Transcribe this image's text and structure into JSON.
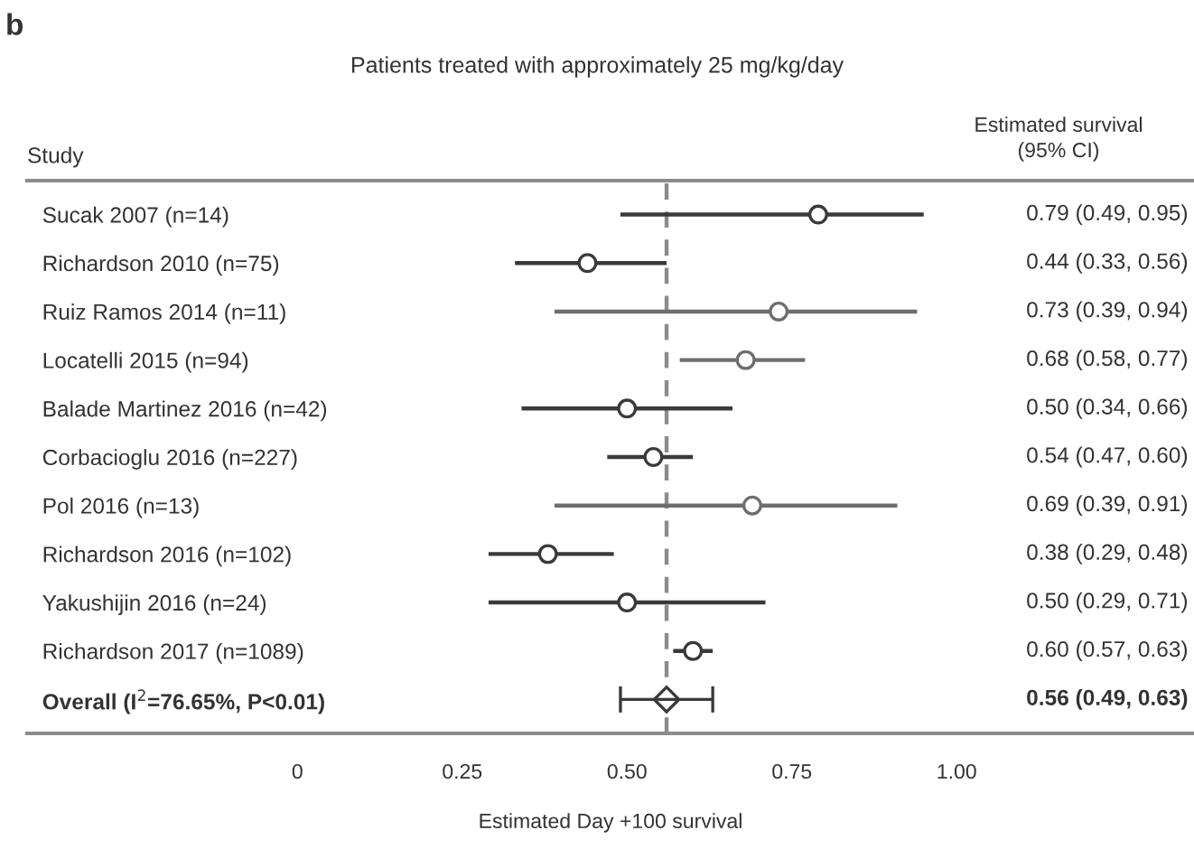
{
  "chart_data": {
    "type": "scatter",
    "orientation": "horizontal",
    "title": "Patients treated with approximately 25 mg/kg/day",
    "xlabel": "Estimated Day +100 survival",
    "annotations": [
      "b",
      "Study",
      "Estimated survival\n(95% CI)",
      "0.79 (0.49, 0.95)",
      "0.44 (0.33, 0.56)",
      "0.73 (0.39, 0.94)",
      "0.68 (0.58, 0.77)",
      "0.50 (0.34, 0.66)",
      "0.54 (0.47, 0.60)",
      "0.69 (0.39, 0.91)",
      "0.38 (0.29, 0.48)",
      "0.50 (0.29, 0.71)",
      "0.60 (0.57, 0.63)",
      "0.56 (0.49, 0.63)"
    ],
    "categories": [
      "Sucak 2007 (n=14)",
      "Richardson 2010 (n=75)",
      "Ruiz Ramos 2014 (n=11)",
      "Locatelli 2015 (n=94)",
      "Balade Martinez 2016 (n=42)",
      "Corbacioglu 2016 (n=227)",
      "Pol 2016 (n=13)",
      "Richardson 2016 (n=102)",
      "Yakushijin 2016 (n=24)",
      "Richardson 2017 (n=1089)",
      "Overall (I$^{2}$=76.65%, P<0.01)"
    ],
    "xlim": [
      -0.41,
      1.36
    ],
    "xticks": [
      0,
      {
        "value": 0.25,
        "label": "0.25"
      },
      {
        "value": 0.5,
        "label": "0.50"
      },
      {
        "value": 0.75,
        "label": "0.75"
      },
      {
        "value": 1,
        "label": "1.00"
      }
    ],
    "ref_lines": [
      {
        "axis": "x",
        "value": 0.56,
        "label": null,
        "color": "#8c8c8c",
        "line_style": "dashed"
      }
    ],
    "series": [
      {
        "marker": "circle",
        "color": "#3a3a3a",
        "colors": [
          "#3a3a3a",
          "#3a3a3a",
          "#6e6e6e",
          "#6e6e6e",
          "#3a3a3a",
          "#3a3a3a",
          "#6e6e6e",
          "#3a3a3a",
          "#3a3a3a",
          "#3a3a3a",
          null
        ],
        "values": [
          0.79,
          0.44,
          0.73,
          0.68,
          0.5,
          0.54,
          0.69,
          0.38,
          0.5,
          0.6,
          null
        ],
        "errors": [
          [
            0.49,
            0.95
          ],
          [
            0.33,
            0.56
          ],
          [
            0.39,
            0.94
          ],
          [
            0.58,
            0.77
          ],
          [
            0.34,
            0.66
          ],
          [
            0.47,
            0.6
          ],
          [
            0.39,
            0.91
          ],
          [
            0.29,
            0.48
          ],
          [
            0.29,
            0.71
          ],
          [
            0.57,
            0.63
          ],
          null
        ]
      },
      {
        "marker": "diamond",
        "color": "#3a3a3a",
        "values": [
          null,
          null,
          null,
          null,
          null,
          null,
          null,
          null,
          null,
          null,
          0.56
        ],
        "errors": [
          null,
          null,
          null,
          null,
          null,
          null,
          null,
          null,
          null,
          null,
          [
            0.49,
            0.63
          ]
        ]
      }
    ]
  }
}
